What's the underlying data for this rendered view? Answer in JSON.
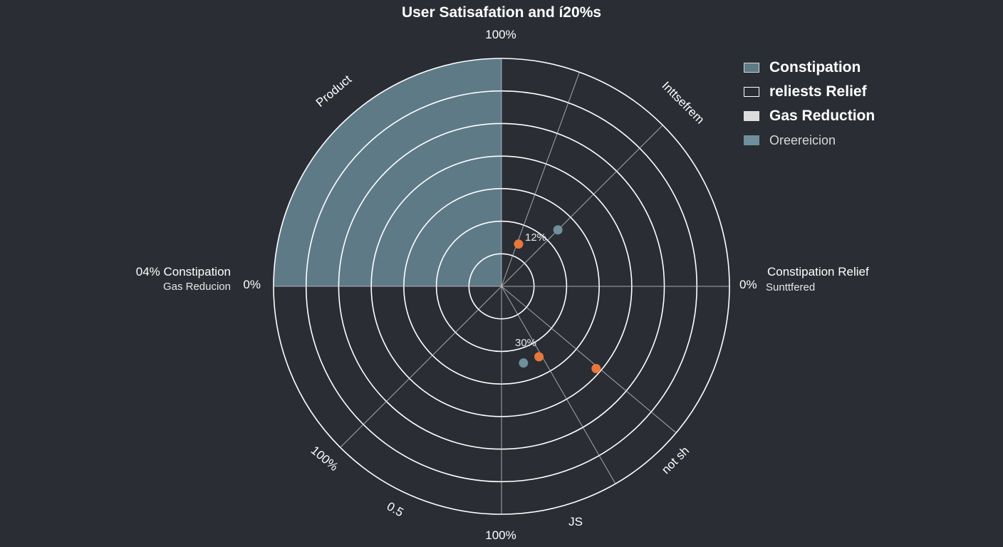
{
  "chart_data": {
    "type": "polar",
    "title": "User Satisafation and í20%s",
    "rings": 7,
    "colors": {
      "sector": "#5e7a87",
      "point_orange": "#e8773a",
      "point_blue": "#6f8f9c",
      "grid": "#ffffff"
    },
    "sector_labels": {
      "top_left": "Product",
      "top_right": "Inttsefrem",
      "bottom_right": "not sh",
      "bottom_left": "100%"
    },
    "axis_labels": {
      "top": "100%",
      "bottom": "100%",
      "left_value": "0%",
      "right_value": "0%",
      "bottom_extra_left": "0.5",
      "bottom_extra_right": "JS"
    },
    "side_labels": {
      "left_line1": "04% Constipation",
      "left_line2": "Gas Reducion",
      "right_line1": "Constipation Relief",
      "right_line2": "Sunttfered"
    },
    "point_labels": {
      "upper": "12%",
      "lower": "30%"
    },
    "points": [
      {
        "angle_deg": 22,
        "r": 0.2,
        "color": "point_orange"
      },
      {
        "angle_deg": 45,
        "r": 0.35,
        "color": "point_blue"
      },
      {
        "angle_deg": 152,
        "r": 0.35,
        "color": "point_orange"
      },
      {
        "angle_deg": 164,
        "r": 0.35,
        "color": "point_blue"
      },
      {
        "angle_deg": 131,
        "r": 0.55,
        "color": "point_orange"
      }
    ],
    "legend": [
      {
        "label": "Constipation",
        "fill": "#5e7a87",
        "border": "#cfd8dc"
      },
      {
        "label": "reliests Relief",
        "fill": "none",
        "border": "#ffffff"
      },
      {
        "label": "Gas Reduction",
        "fill": "#dcdcdc",
        "border": "#dcdcdc"
      },
      {
        "label": "Oreereicion",
        "fill": "#6f8f9c",
        "border": "#6f8f9c"
      }
    ]
  }
}
